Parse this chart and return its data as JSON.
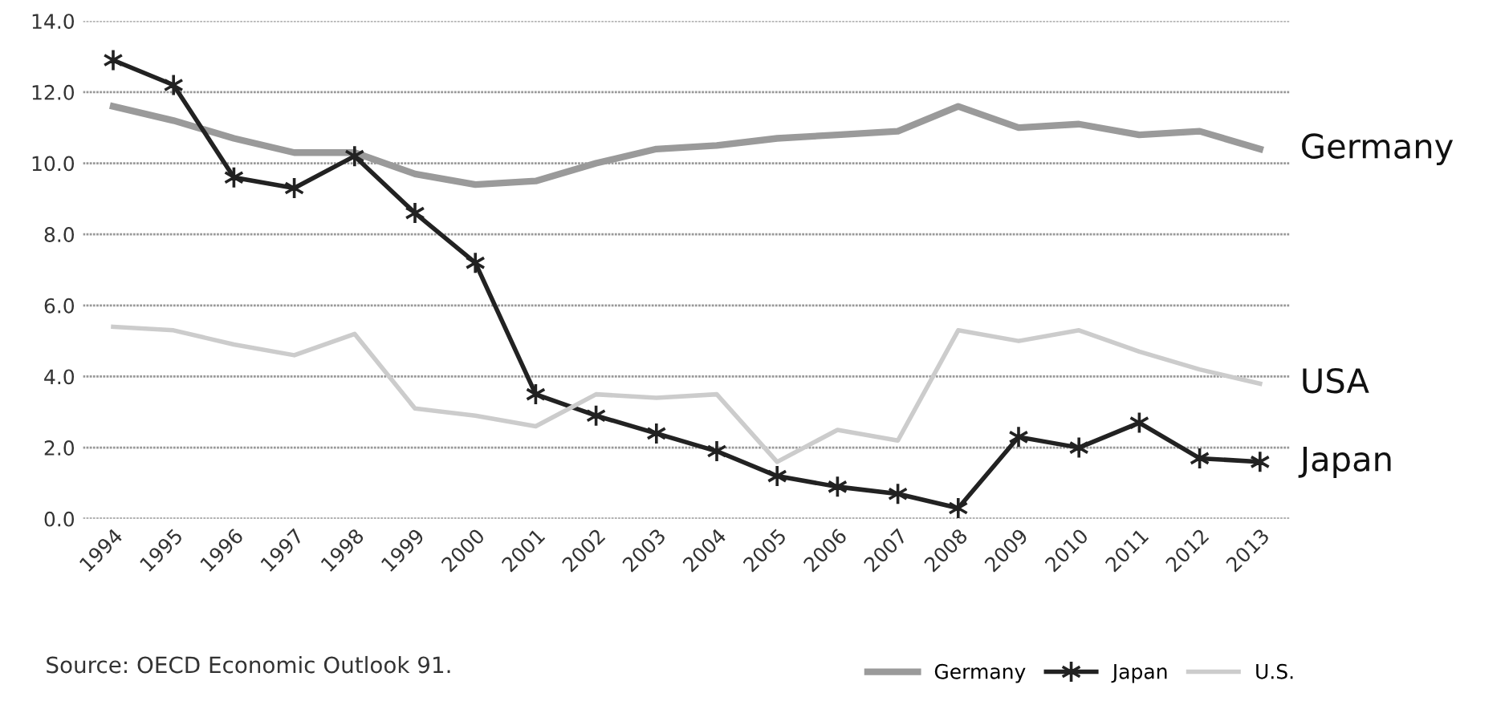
{
  "chart_data": {
    "type": "line",
    "categories": [
      "1994",
      "1995",
      "1996",
      "1997",
      "1998",
      "1999",
      "2000",
      "2001",
      "2002",
      "2003",
      "2004",
      "2005",
      "2006",
      "2007",
      "2008",
      "2009",
      "2010",
      "2011",
      "2012",
      "2013"
    ],
    "series": [
      {
        "name": "Germany",
        "color": "#9a9a9a",
        "marker": "none",
        "values": [
          11.6,
          11.2,
          10.7,
          10.3,
          10.3,
          9.7,
          9.4,
          9.5,
          10.0,
          10.4,
          10.5,
          10.7,
          10.8,
          10.9,
          11.6,
          11.0,
          11.1,
          10.8,
          10.9,
          10.4
        ]
      },
      {
        "name": "Japan",
        "color": "#222222",
        "marker": "cross",
        "values": [
          12.9,
          12.2,
          9.6,
          9.3,
          10.2,
          8.6,
          7.2,
          3.5,
          2.9,
          2.4,
          1.9,
          1.2,
          0.9,
          0.7,
          0.3,
          2.3,
          2.0,
          2.7,
          1.7,
          1.6
        ]
      },
      {
        "name": "U.S.",
        "color": "#cccccc",
        "marker": "none",
        "values": [
          5.4,
          5.3,
          4.9,
          4.6,
          5.2,
          3.1,
          2.9,
          2.6,
          3.5,
          3.4,
          3.5,
          1.6,
          2.5,
          2.2,
          5.3,
          5.0,
          5.3,
          4.7,
          4.2,
          3.8
        ]
      }
    ],
    "ylim": [
      0,
      14
    ],
    "yticks": [
      {
        "value": 0,
        "label": "0.0"
      },
      {
        "value": 2,
        "label": "2.0"
      },
      {
        "value": 4,
        "label": "4.0"
      },
      {
        "value": 6,
        "label": "6.0"
      },
      {
        "value": 8,
        "label": "8.0"
      },
      {
        "value": 10,
        "label": "10.0"
      },
      {
        "value": 12,
        "label": "12.0"
      },
      {
        "value": 14,
        "label": "14.0"
      }
    ],
    "grid": "y",
    "legend": "bottom right",
    "line_style": "solid",
    "annotations": [
      {
        "text": "Germany",
        "x": "2013",
        "y": 10.4
      },
      {
        "text": "USA",
        "x": "2013",
        "y": 3.8
      },
      {
        "text": "Japan",
        "x": "2013",
        "y": 1.6
      },
      "Source: OECD Economic Outlook 91."
    ]
  }
}
